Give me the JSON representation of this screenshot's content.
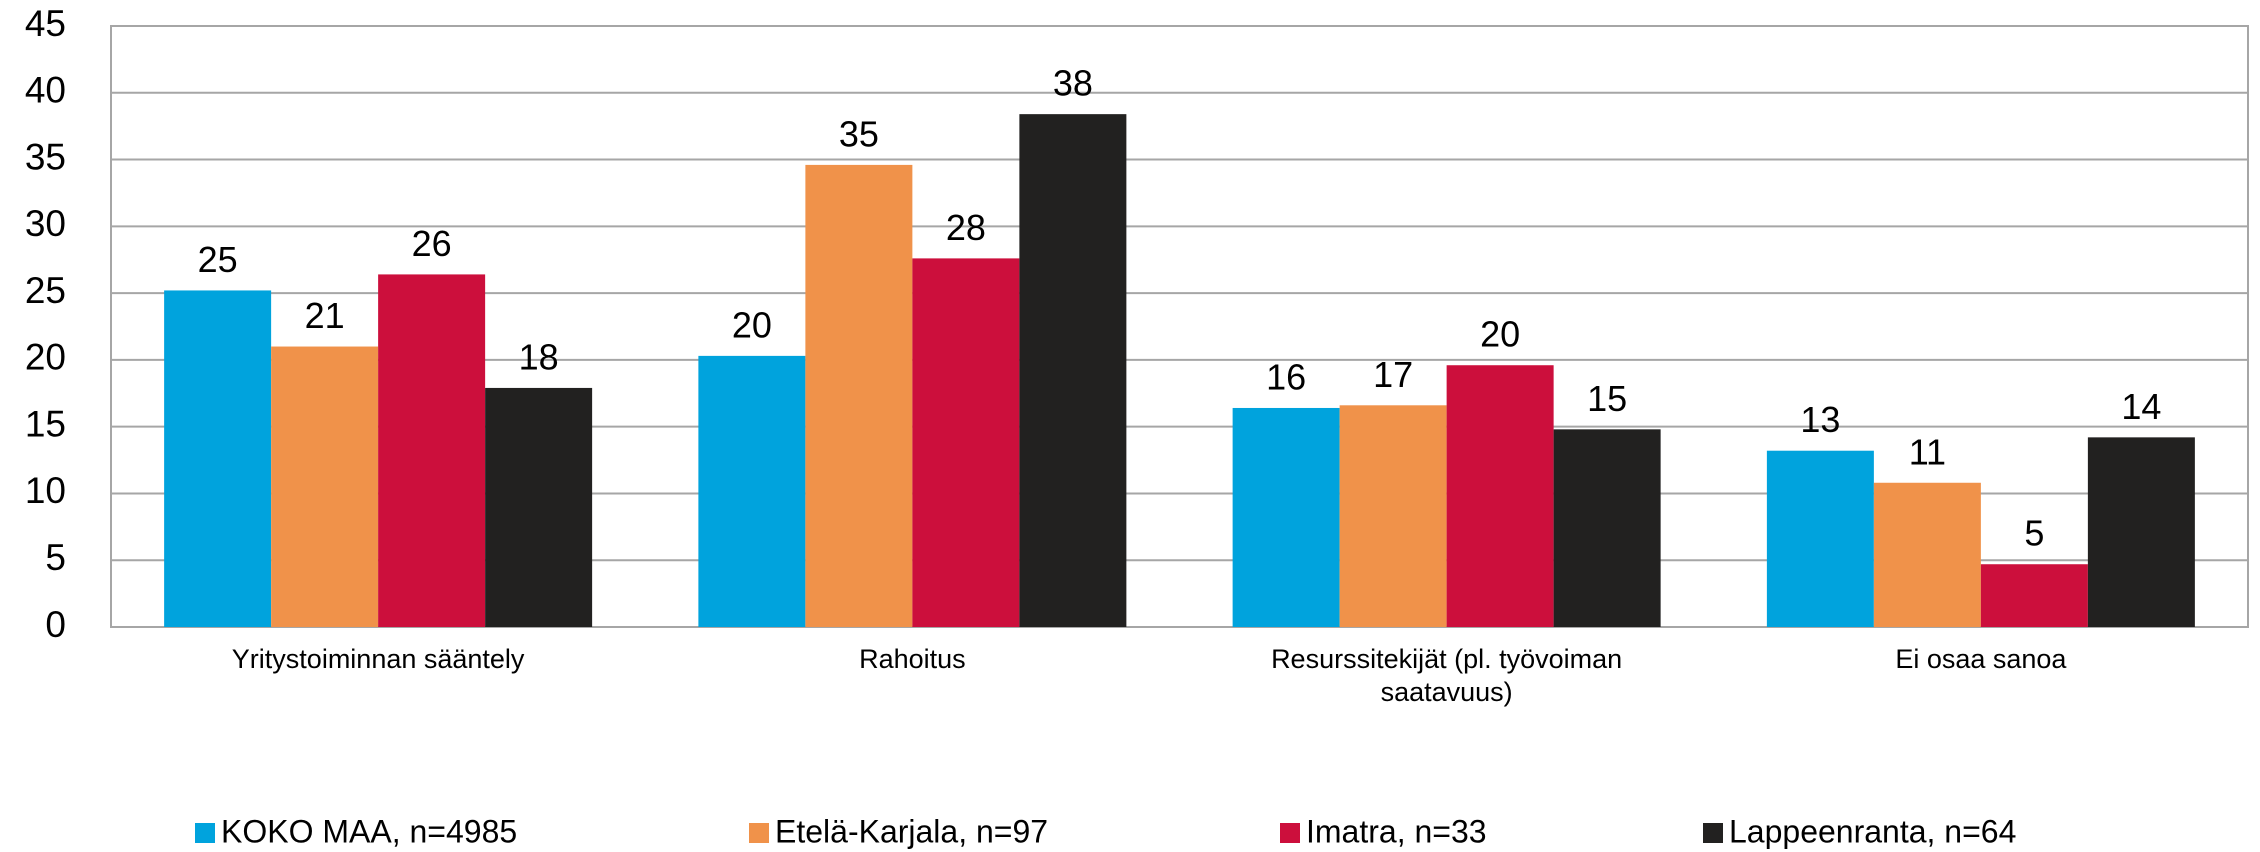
{
  "chart_data": {
    "type": "bar",
    "categories": [
      "Yritystoiminnan sääntely",
      "Rahoitus",
      "Resurssitekijät (pl. työvoiman saatavuus)",
      "Ei osaa sanoa"
    ],
    "series": [
      {
        "name": "KOKO MAA, n=4985",
        "color": "#00a3dd",
        "values": [
          25.2,
          20.3,
          16.4,
          13.2
        ],
        "value_labels": [
          25,
          20,
          16,
          13
        ]
      },
      {
        "name": "Etelä-Karjala, n=97",
        "color": "#f0924a",
        "values": [
          21.0,
          34.6,
          16.6,
          10.8
        ],
        "value_labels": [
          21,
          35,
          17,
          11
        ]
      },
      {
        "name": "Imatra, n=33",
        "color": "#cc0f3c",
        "values": [
          26.4,
          27.6,
          19.6,
          4.7
        ],
        "value_labels": [
          26,
          28,
          20,
          5
        ]
      },
      {
        "name": "Lappeenranta, n=64",
        "color": "#222120",
        "values": [
          17.9,
          38.4,
          14.8,
          14.2
        ],
        "value_labels": [
          18,
          38,
          15,
          14
        ]
      }
    ],
    "ylim": [
      0,
      45
    ],
    "yticks": [
      0,
      5,
      10,
      15,
      20,
      25,
      30,
      35,
      40,
      45
    ],
    "grid": true,
    "legend": "bottom"
  }
}
